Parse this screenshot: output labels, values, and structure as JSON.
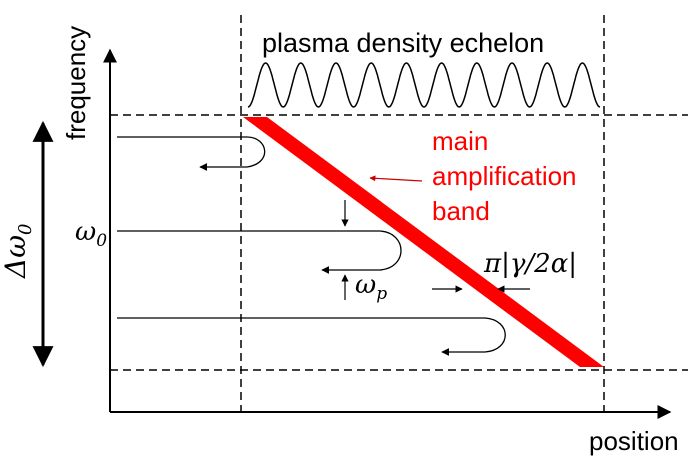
{
  "labels": {
    "y_axis": "frequency",
    "x_axis": "position",
    "echelon": "plasma density echelon",
    "band_line1": "main",
    "band_line2": "amplification",
    "band_line3": "band",
    "delta_omega_symbol": "Δω",
    "delta_omega_sub": "0",
    "omega0_symbol": "ω",
    "omega0_sub": "0",
    "omegap_symbol": "ω",
    "omegap_sub": "p",
    "band_width": "π|γ/2α|"
  },
  "colors": {
    "band": "#ff0000",
    "band_text": "#ff0000",
    "ink": "#000000",
    "pointer": "#cc0000"
  },
  "echelon_oscillations": 10
}
